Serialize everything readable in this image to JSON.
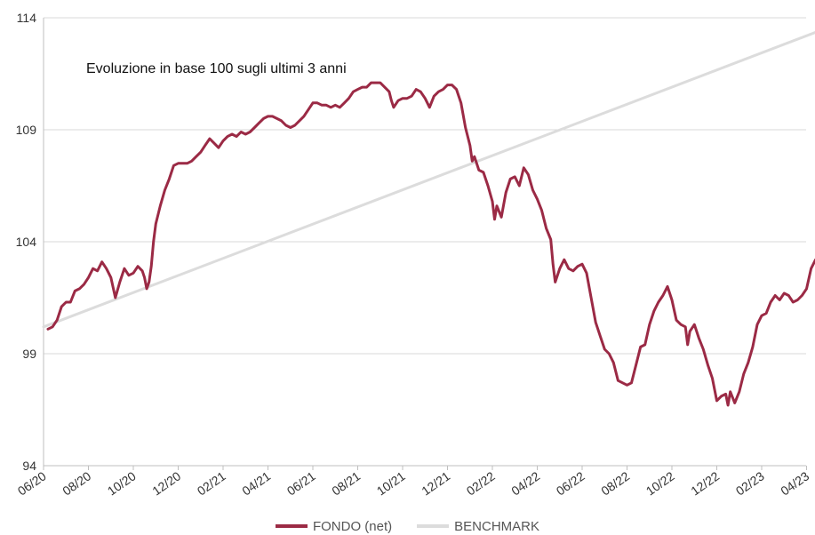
{
  "chart_data": {
    "type": "line",
    "title": "Evoluzione in base 100 sugli ultimi 3 anni",
    "xlabel": "",
    "ylabel": "",
    "ylim": [
      94,
      114
    ],
    "y_ticks": [
      "94",
      "99",
      "104",
      "109",
      "114"
    ],
    "y_tick_values": [
      94,
      99,
      104,
      109,
      114
    ],
    "x_ticks": [
      "06/20",
      "08/20",
      "10/20",
      "12/20",
      "02/21",
      "04/21",
      "06/21",
      "08/21",
      "10/21",
      "12/21",
      "02/22",
      "04/22",
      "06/22",
      "08/22",
      "10/22",
      "12/22",
      "02/23",
      "04/23"
    ],
    "grid": "horizontal",
    "legend_position": "bottom",
    "series": [
      {
        "name": "FONDO (net)",
        "color": "#9b2a45",
        "points": [
          [
            0.2,
            100.1
          ],
          [
            0.4,
            100.2
          ],
          [
            0.6,
            100.5
          ],
          [
            0.8,
            101.1
          ],
          [
            1.0,
            101.3
          ],
          [
            1.2,
            101.3
          ],
          [
            1.4,
            101.8
          ],
          [
            1.6,
            101.9
          ],
          [
            1.8,
            102.1
          ],
          [
            2.0,
            102.4
          ],
          [
            2.2,
            102.8
          ],
          [
            2.4,
            102.7
          ],
          [
            2.6,
            103.1
          ],
          [
            2.8,
            102.8
          ],
          [
            3.0,
            102.4
          ],
          [
            3.2,
            101.5
          ],
          [
            3.4,
            102.2
          ],
          [
            3.6,
            102.8
          ],
          [
            3.8,
            102.5
          ],
          [
            4.0,
            102.6
          ],
          [
            4.2,
            102.9
          ],
          [
            4.4,
            102.7
          ],
          [
            4.5,
            102.4
          ],
          [
            4.6,
            101.9
          ],
          [
            4.7,
            102.2
          ],
          [
            4.8,
            102.9
          ],
          [
            4.9,
            104.0
          ],
          [
            5.0,
            104.8
          ],
          [
            5.2,
            105.6
          ],
          [
            5.4,
            106.3
          ],
          [
            5.6,
            106.8
          ],
          [
            5.8,
            107.4
          ],
          [
            6.0,
            107.5
          ],
          [
            6.2,
            107.5
          ],
          [
            6.4,
            107.5
          ],
          [
            6.6,
            107.6
          ],
          [
            6.8,
            107.8
          ],
          [
            7.0,
            108.0
          ],
          [
            7.2,
            108.3
          ],
          [
            7.4,
            108.6
          ],
          [
            7.6,
            108.4
          ],
          [
            7.8,
            108.2
          ],
          [
            8.0,
            108.5
          ],
          [
            8.2,
            108.7
          ],
          [
            8.4,
            108.8
          ],
          [
            8.6,
            108.7
          ],
          [
            8.8,
            108.9
          ],
          [
            9.0,
            108.8
          ],
          [
            9.2,
            108.9
          ],
          [
            9.4,
            109.1
          ],
          [
            9.6,
            109.3
          ],
          [
            9.8,
            109.5
          ],
          [
            10.0,
            109.6
          ],
          [
            10.2,
            109.6
          ],
          [
            10.4,
            109.5
          ],
          [
            10.6,
            109.4
          ],
          [
            10.8,
            109.2
          ],
          [
            11.0,
            109.1
          ],
          [
            11.2,
            109.2
          ],
          [
            11.4,
            109.4
          ],
          [
            11.6,
            109.6
          ],
          [
            11.8,
            109.9
          ],
          [
            12.0,
            110.2
          ],
          [
            12.2,
            110.2
          ],
          [
            12.4,
            110.1
          ],
          [
            12.6,
            110.1
          ],
          [
            12.8,
            110.0
          ],
          [
            13.0,
            110.1
          ],
          [
            13.2,
            110.0
          ],
          [
            13.4,
            110.2
          ],
          [
            13.6,
            110.4
          ],
          [
            13.8,
            110.7
          ],
          [
            14.0,
            110.8
          ],
          [
            14.2,
            110.9
          ],
          [
            14.4,
            110.9
          ],
          [
            14.6,
            111.1
          ],
          [
            14.8,
            111.1
          ],
          [
            15.0,
            111.1
          ],
          [
            15.2,
            110.9
          ],
          [
            15.4,
            110.7
          ],
          [
            15.5,
            110.3
          ],
          [
            15.6,
            110.0
          ],
          [
            15.8,
            110.3
          ],
          [
            16.0,
            110.4
          ],
          [
            16.2,
            110.4
          ],
          [
            16.4,
            110.5
          ],
          [
            16.6,
            110.8
          ],
          [
            16.8,
            110.7
          ],
          [
            17.0,
            110.4
          ],
          [
            17.2,
            110.0
          ],
          [
            17.4,
            110.5
          ],
          [
            17.6,
            110.7
          ],
          [
            17.8,
            110.8
          ],
          [
            18.0,
            111.0
          ],
          [
            18.2,
            111.0
          ],
          [
            18.4,
            110.8
          ],
          [
            18.6,
            110.2
          ],
          [
            18.8,
            109.1
          ],
          [
            19.0,
            108.3
          ],
          [
            19.1,
            107.6
          ],
          [
            19.2,
            107.8
          ],
          [
            19.4,
            107.2
          ],
          [
            19.6,
            107.1
          ],
          [
            19.8,
            106.5
          ],
          [
            20.0,
            105.8
          ],
          [
            20.1,
            105.0
          ],
          [
            20.2,
            105.6
          ],
          [
            20.4,
            105.1
          ],
          [
            20.6,
            106.2
          ],
          [
            20.8,
            106.8
          ],
          [
            21.0,
            106.9
          ],
          [
            21.2,
            106.5
          ],
          [
            21.4,
            107.3
          ],
          [
            21.6,
            107.0
          ],
          [
            21.8,
            106.3
          ],
          [
            22.0,
            105.9
          ],
          [
            22.2,
            105.4
          ],
          [
            22.4,
            104.6
          ],
          [
            22.6,
            104.1
          ],
          [
            22.7,
            103.0
          ],
          [
            22.8,
            102.2
          ],
          [
            23.0,
            102.8
          ],
          [
            23.2,
            103.2
          ],
          [
            23.4,
            102.8
          ],
          [
            23.6,
            102.7
          ],
          [
            23.8,
            102.9
          ],
          [
            24.0,
            103.0
          ],
          [
            24.2,
            102.6
          ],
          [
            24.4,
            101.5
          ],
          [
            24.6,
            100.4
          ],
          [
            24.8,
            99.8
          ],
          [
            25.0,
            99.2
          ],
          [
            25.2,
            99.0
          ],
          [
            25.4,
            98.6
          ],
          [
            25.6,
            97.8
          ],
          [
            25.8,
            97.7
          ],
          [
            26.0,
            97.6
          ],
          [
            26.2,
            97.7
          ],
          [
            26.4,
            98.5
          ],
          [
            26.6,
            99.3
          ],
          [
            26.8,
            99.4
          ],
          [
            27.0,
            100.3
          ],
          [
            27.2,
            100.9
          ],
          [
            27.4,
            101.3
          ],
          [
            27.6,
            101.6
          ],
          [
            27.8,
            102.0
          ],
          [
            28.0,
            101.4
          ],
          [
            28.2,
            100.5
          ],
          [
            28.4,
            100.3
          ],
          [
            28.6,
            100.2
          ],
          [
            28.7,
            99.4
          ],
          [
            28.8,
            100.0
          ],
          [
            29.0,
            100.3
          ],
          [
            29.2,
            99.7
          ],
          [
            29.4,
            99.2
          ],
          [
            29.6,
            98.5
          ],
          [
            29.8,
            97.9
          ],
          [
            30.0,
            96.9
          ],
          [
            30.2,
            97.1
          ],
          [
            30.4,
            97.2
          ],
          [
            30.5,
            96.7
          ],
          [
            30.6,
            97.3
          ],
          [
            30.8,
            96.8
          ],
          [
            31.0,
            97.3
          ],
          [
            31.2,
            98.1
          ],
          [
            31.4,
            98.6
          ],
          [
            31.6,
            99.3
          ],
          [
            31.8,
            100.3
          ],
          [
            32.0,
            100.7
          ],
          [
            32.2,
            100.8
          ],
          [
            32.4,
            101.3
          ],
          [
            32.6,
            101.6
          ],
          [
            32.8,
            101.4
          ],
          [
            33.0,
            101.7
          ],
          [
            33.2,
            101.6
          ],
          [
            33.4,
            101.3
          ],
          [
            33.6,
            101.4
          ],
          [
            33.8,
            101.6
          ],
          [
            34.0,
            101.9
          ],
          [
            34.2,
            102.8
          ],
          [
            34.4,
            103.2
          ],
          [
            34.6,
            103.3
          ],
          [
            34.8,
            103.6
          ],
          [
            35.0,
            103.5
          ],
          [
            35.2,
            104.3
          ],
          [
            35.4,
            104.2
          ],
          [
            35.6,
            103.9
          ],
          [
            35.7,
            103.3
          ],
          [
            35.8,
            103.0
          ],
          [
            35.9,
            103.4
          ],
          [
            36.0,
            103.4
          ]
        ]
      },
      {
        "name": "BENCHMARK",
        "color": "#dcdcdc",
        "points": [
          [
            0,
            100.2
          ],
          [
            36.1,
            114.0
          ]
        ]
      }
    ]
  }
}
